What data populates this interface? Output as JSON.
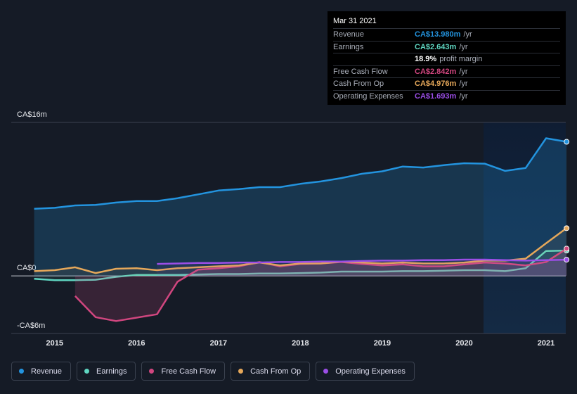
{
  "chart_data": {
    "type": "line",
    "x": [
      2014.75,
      2015,
      2015.25,
      2015.5,
      2015.75,
      2016,
      2016.25,
      2016.5,
      2016.75,
      2017,
      2017.25,
      2017.5,
      2017.75,
      2018,
      2018.25,
      2018.5,
      2018.75,
      2019,
      2019.25,
      2019.5,
      2019.75,
      2020,
      2020.25,
      2020.5,
      2020.75,
      2021,
      2021.25
    ],
    "xlim": [
      2014.47,
      2021.24
    ],
    "xticks": [
      2015,
      2016,
      2017,
      2018,
      2019,
      2020,
      2021
    ],
    "ylim": [
      -6,
      16
    ],
    "yticks": [
      {
        "value": 16,
        "label": "CA$16m"
      },
      {
        "value": 0,
        "label": "CA$0"
      },
      {
        "value": -6,
        "label": "-CA$6m"
      }
    ],
    "grid": true,
    "series": [
      {
        "name": "Revenue",
        "color": "#2394df",
        "values": [
          7.0,
          7.1,
          7.35,
          7.4,
          7.65,
          7.8,
          7.8,
          8.1,
          8.5,
          8.9,
          9.05,
          9.25,
          9.25,
          9.6,
          9.85,
          10.2,
          10.65,
          10.9,
          11.4,
          11.3,
          11.55,
          11.75,
          11.7,
          10.95,
          11.25,
          14.35,
          13.98
        ]
      },
      {
        "name": "Earnings",
        "color": "#5fd6c1",
        "values": [
          -0.3,
          -0.45,
          -0.45,
          -0.4,
          -0.1,
          0.1,
          0.1,
          0.1,
          0.15,
          0.2,
          0.2,
          0.25,
          0.25,
          0.3,
          0.35,
          0.45,
          0.45,
          0.45,
          0.5,
          0.5,
          0.55,
          0.6,
          0.6,
          0.5,
          0.8,
          2.6,
          2.643
        ]
      },
      {
        "name": "Free Cash Flow",
        "color": "#d1467f",
        "values": [
          null,
          null,
          -2.1,
          -4.3,
          -4.7,
          -4.35,
          -4.0,
          -0.6,
          0.65,
          0.8,
          1.0,
          1.45,
          1.0,
          1.25,
          1.3,
          1.45,
          1.25,
          1.1,
          1.2,
          1.0,
          1.0,
          1.2,
          1.4,
          1.3,
          1.1,
          1.45,
          2.842
        ]
      },
      {
        "name": "Cash From Op",
        "color": "#e6a85a",
        "values": [
          0.5,
          0.6,
          0.9,
          0.3,
          0.75,
          0.8,
          0.6,
          0.8,
          0.9,
          1.0,
          1.1,
          1.4,
          1.1,
          1.3,
          1.3,
          1.5,
          1.4,
          1.3,
          1.4,
          1.3,
          1.3,
          1.4,
          1.6,
          1.6,
          1.8,
          3.4,
          4.976
        ]
      },
      {
        "name": "Operating Expenses",
        "color": "#9b4ee6",
        "values": [
          null,
          null,
          null,
          null,
          null,
          null,
          1.25,
          1.3,
          1.35,
          1.35,
          1.4,
          1.4,
          1.45,
          1.45,
          1.5,
          1.5,
          1.55,
          1.6,
          1.6,
          1.65,
          1.65,
          1.7,
          1.7,
          1.65,
          1.6,
          1.65,
          1.693
        ]
      }
    ]
  },
  "tooltip": {
    "date": "Mar 31 2021",
    "rows": [
      {
        "label": "Revenue",
        "value": "CA$13.980m",
        "unit": "/yr",
        "color": "#2394df"
      },
      {
        "label": "Earnings",
        "value": "CA$2.643m",
        "unit": "/yr",
        "color": "#5fd6c1"
      },
      {
        "label": null,
        "value": "18.9%",
        "unit": "profit margin",
        "color": "#ffffff"
      },
      {
        "label": "Free Cash Flow",
        "value": "CA$2.842m",
        "unit": "/yr",
        "color": "#d1467f"
      },
      {
        "label": "Cash From Op",
        "value": "CA$4.976m",
        "unit": "/yr",
        "color": "#e6a85a"
      },
      {
        "label": "Operating Expenses",
        "value": "CA$1.693m",
        "unit": "/yr",
        "color": "#9b4ee6"
      }
    ]
  }
}
